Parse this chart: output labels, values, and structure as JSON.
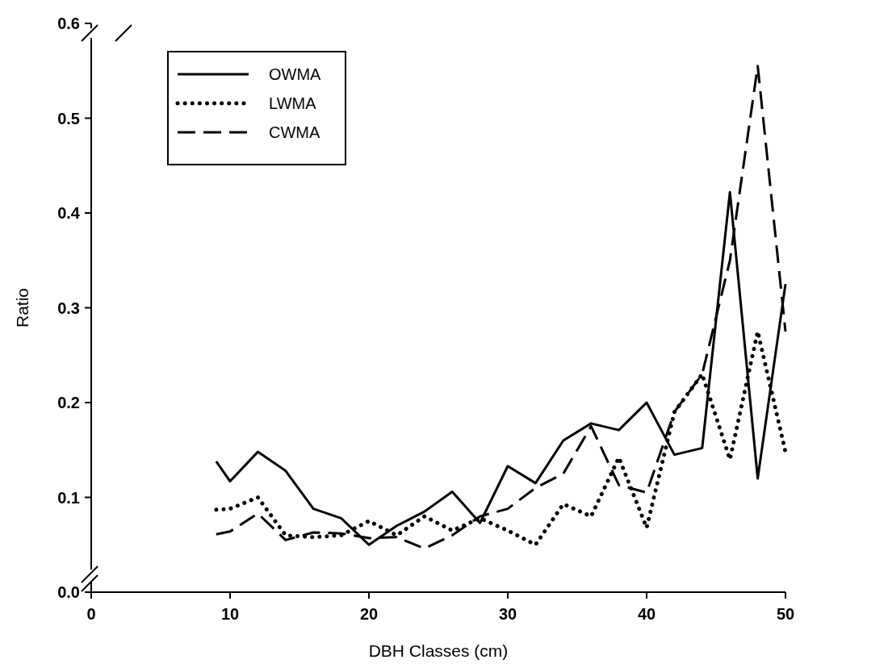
{
  "chart_data": {
    "type": "line",
    "xlabel": "DBH Classes (cm)",
    "ylabel": "Ratio",
    "x": [
      9,
      10,
      12,
      14,
      16,
      18,
      20,
      22,
      24,
      26,
      28,
      30,
      32,
      34,
      36,
      38,
      40,
      42,
      44,
      46,
      48,
      50
    ],
    "series": [
      {
        "name": "OWMA",
        "color": "#000000",
        "line_style": "solid",
        "values": [
          0.138,
          0.117,
          0.148,
          0.128,
          0.088,
          0.078,
          0.05,
          0.07,
          0.085,
          0.106,
          0.073,
          0.133,
          0.115,
          0.16,
          0.178,
          0.171,
          0.2,
          0.145,
          0.152,
          0.422,
          0.12,
          0.325
        ]
      },
      {
        "name": "LWMA",
        "color": "#000000",
        "line_style": "dotted",
        "values": [
          0.087,
          0.088,
          0.1,
          0.06,
          0.058,
          0.06,
          0.075,
          0.06,
          0.08,
          0.065,
          0.078,
          0.065,
          0.05,
          0.093,
          0.08,
          0.142,
          0.068,
          0.19,
          0.23,
          0.14,
          0.275,
          0.148
        ]
      },
      {
        "name": "CWMA",
        "color": "#000000",
        "line_style": "dashed",
        "values": [
          0.061,
          0.064,
          0.083,
          0.055,
          0.063,
          0.062,
          0.057,
          0.058,
          0.046,
          0.06,
          0.08,
          0.088,
          0.11,
          0.125,
          0.175,
          0.113,
          0.105,
          0.19,
          0.23,
          0.35,
          0.555,
          0.275
        ]
      }
    ],
    "xlim": [
      0,
      50
    ],
    "xticks": [
      0,
      10,
      20,
      30,
      40,
      50
    ],
    "ylim": [
      0,
      0.6
    ],
    "yticks": [
      {
        "value": 0,
        "label": "0.0"
      },
      0.1,
      0.2,
      0.3,
      0.4,
      0.5,
      0.6
    ],
    "grid": false,
    "legend": "top left"
  }
}
